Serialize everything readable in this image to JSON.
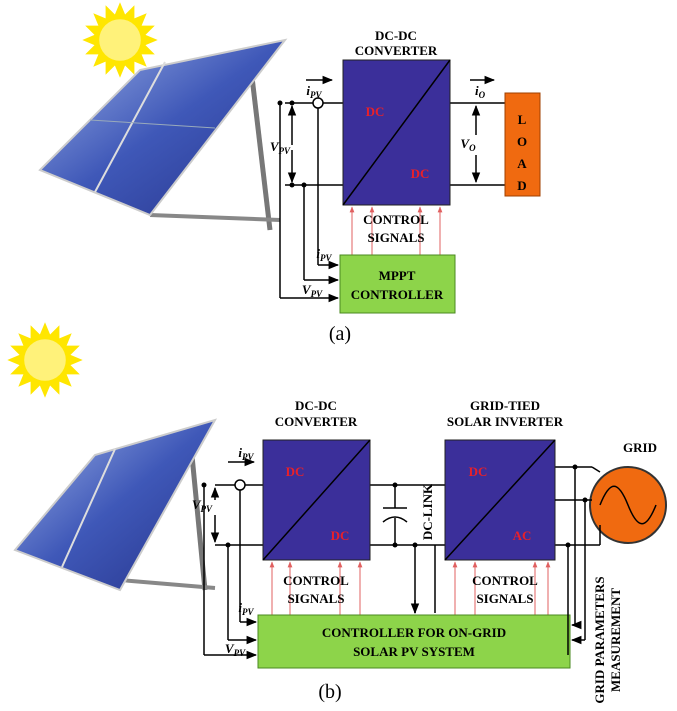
{
  "panel_a": {
    "converter_title": [
      "DC-DC",
      "CONVERTER"
    ],
    "converter_input": "DC",
    "converter_output": "DC",
    "load": [
      "L",
      "O",
      "A",
      "D"
    ],
    "current_in": {
      "symbol": "i",
      "subscript": "PV"
    },
    "voltage_in": {
      "symbol": "V",
      "subscript": "PV"
    },
    "current_out": {
      "symbol": "i",
      "subscript": "O"
    },
    "voltage_out": {
      "symbol": "V",
      "subscript": "O"
    },
    "control_signals": [
      "CONTROL",
      "SIGNALS"
    ],
    "sense_current": {
      "symbol": "i",
      "subscript": "PV"
    },
    "sense_voltage": {
      "symbol": "V",
      "subscript": "PV"
    },
    "controller": [
      "MPPT",
      "CONTROLLER"
    ],
    "caption": "(a)"
  },
  "panel_b": {
    "converter_title": [
      "DC-DC",
      "CONVERTER"
    ],
    "converter_input": "DC",
    "converter_output": "DC",
    "inverter_title": [
      "GRID-TIED",
      "SOLAR INVERTER"
    ],
    "inverter_input": "DC",
    "inverter_output": "AC",
    "grid": "GRID",
    "dc_link": "DC-LINK",
    "current_in": {
      "symbol": "i",
      "subscript": "PV"
    },
    "voltage_in": {
      "symbol": "V",
      "subscript": "PV"
    },
    "control_signals_converter": [
      "CONTROL",
      "SIGNALS"
    ],
    "control_signals_inverter": [
      "CONTROL",
      "SIGNALS"
    ],
    "sense_current": {
      "symbol": "i",
      "subscript": "PV"
    },
    "sense_voltage": {
      "symbol": "V",
      "subscript": "PV"
    },
    "controller": [
      "CONTROLLER FOR ON-GRID",
      "SOLAR PV SYSTEM"
    ],
    "grid_measurement": [
      "GRID PARAMETERS",
      "MEASUREMENT"
    ],
    "caption": "(b)"
  }
}
